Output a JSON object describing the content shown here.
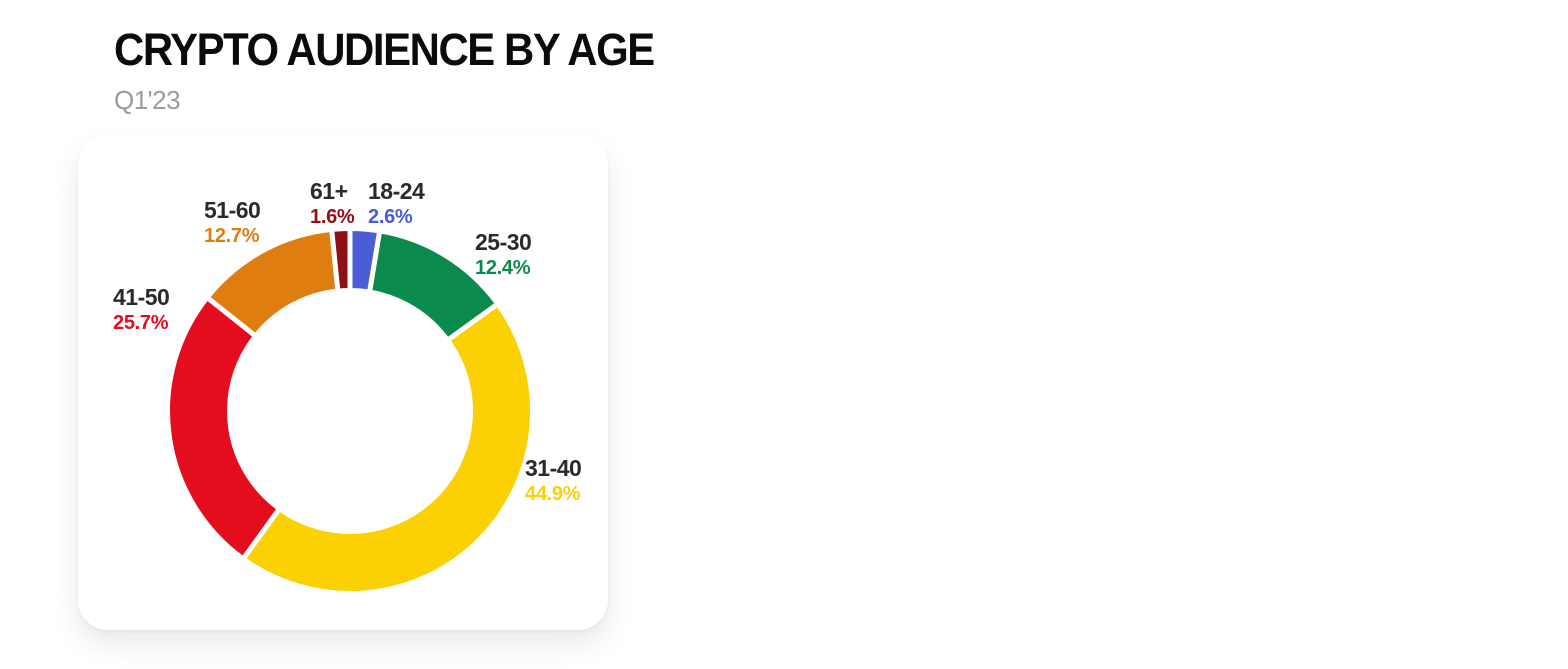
{
  "page": {
    "title": "CRYPTO AUDIENCE BY AGE",
    "subtitle": "Q1'23"
  },
  "chart_data": {
    "type": "pie",
    "variant": "donut",
    "title": "CRYPTO AUDIENCE BY AGE",
    "subtitle": "Q1'23",
    "unit": "percent",
    "start_angle_deg": 0,
    "direction": "clockwise",
    "legend_position": "labels-around-donut",
    "slices": [
      {
        "label": "18-24",
        "value": 2.6,
        "display": "2.6%",
        "color": "#4A5CD6"
      },
      {
        "label": "25-30",
        "value": 12.4,
        "display": "12.4%",
        "color": "#0A8A4D"
      },
      {
        "label": "31-40",
        "value": 44.9,
        "display": "44.9%",
        "color": "#FCD103"
      },
      {
        "label": "41-50",
        "value": 25.7,
        "display": "25.7%",
        "color": "#E30D1D"
      },
      {
        "label": "51-60",
        "value": 12.7,
        "display": "12.7%",
        "color": "#E07D10"
      },
      {
        "label": "61+",
        "value": 1.6,
        "display": "1.6%",
        "color": "#8F1014"
      }
    ]
  }
}
